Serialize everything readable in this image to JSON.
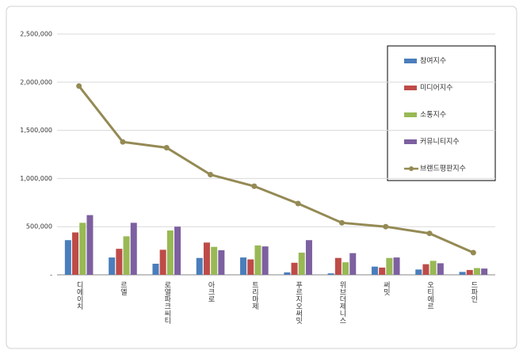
{
  "chart_data": {
    "type": "bar",
    "categories": [
      "디에이치",
      "르엘",
      "로열파크씨티",
      "아크로",
      "트리마제",
      "푸르지오써밋",
      "위브더제니스",
      "써밋",
      "오티에르",
      "드파인"
    ],
    "series": [
      {
        "name": "참여지수",
        "color": "#4a7ebb",
        "values": [
          360000,
          180000,
          115000,
          175000,
          180000,
          25000,
          15000,
          85000,
          55000,
          30000
        ]
      },
      {
        "name": "미디어지수",
        "color": "#be4b48",
        "values": [
          440000,
          270000,
          260000,
          335000,
          160000,
          125000,
          175000,
          75000,
          110000,
          50000
        ]
      },
      {
        "name": "소통지수",
        "color": "#98b954",
        "values": [
          540000,
          400000,
          460000,
          290000,
          305000,
          230000,
          130000,
          175000,
          145000,
          70000
        ]
      },
      {
        "name": "커뮤니티지수",
        "color": "#7d60a0",
        "values": [
          620000,
          540000,
          500000,
          255000,
          295000,
          360000,
          225000,
          180000,
          120000,
          65000
        ]
      },
      {
        "name": "브랜드평판지수",
        "color": "#948a54",
        "type": "line",
        "values": [
          1960000,
          1380000,
          1320000,
          1040000,
          920000,
          740000,
          540000,
          500000,
          430000,
          230000
        ]
      }
    ],
    "ylim": [
      0,
      2500000
    ],
    "yticks": [
      {
        "value": 0,
        "label": "-"
      },
      {
        "value": 500000,
        "label": "500,000"
      },
      {
        "value": 1000000,
        "label": "1,000,000"
      },
      {
        "value": 1500000,
        "label": "1,500,000"
      },
      {
        "value": 2000000,
        "label": "2,000,000"
      },
      {
        "value": 2500000,
        "label": "2,500,000"
      }
    ],
    "grid": true
  }
}
